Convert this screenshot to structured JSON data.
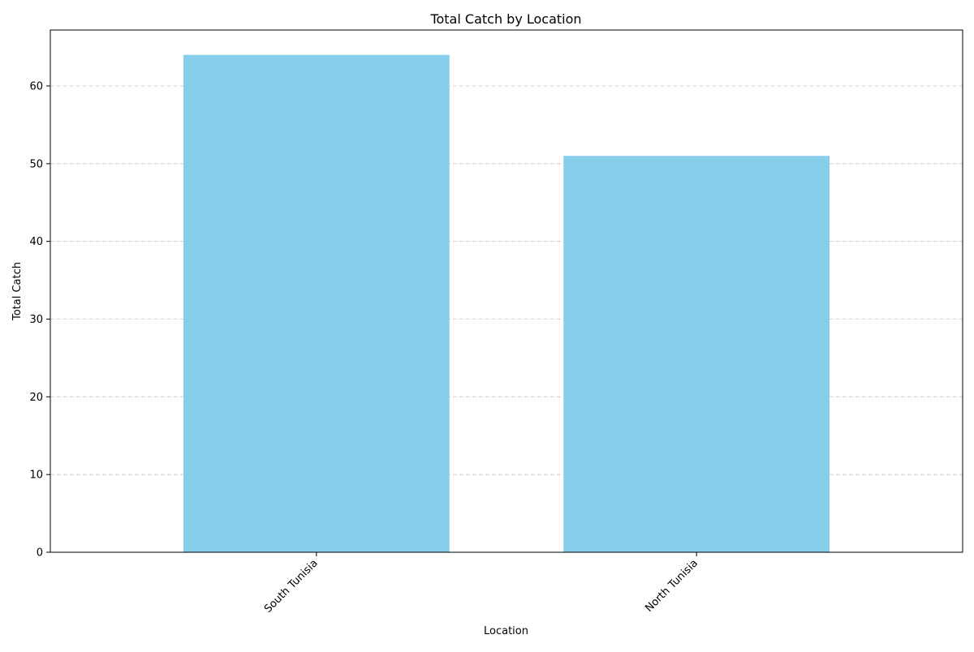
{
  "chart_data": {
    "type": "bar",
    "title": "Total Catch by Location",
    "xlabel": "Location",
    "ylabel": "Total Catch",
    "categories": [
      "South Tunisia",
      "North Tunisia"
    ],
    "values": [
      64,
      51
    ],
    "ylim": [
      0,
      67.2
    ],
    "yticks": [
      0,
      10,
      20,
      30,
      40,
      50,
      60
    ],
    "grid": "y-dashed",
    "bar_color": "#87CEEB",
    "x_tick_rotation": "45deg-right-aligned"
  }
}
